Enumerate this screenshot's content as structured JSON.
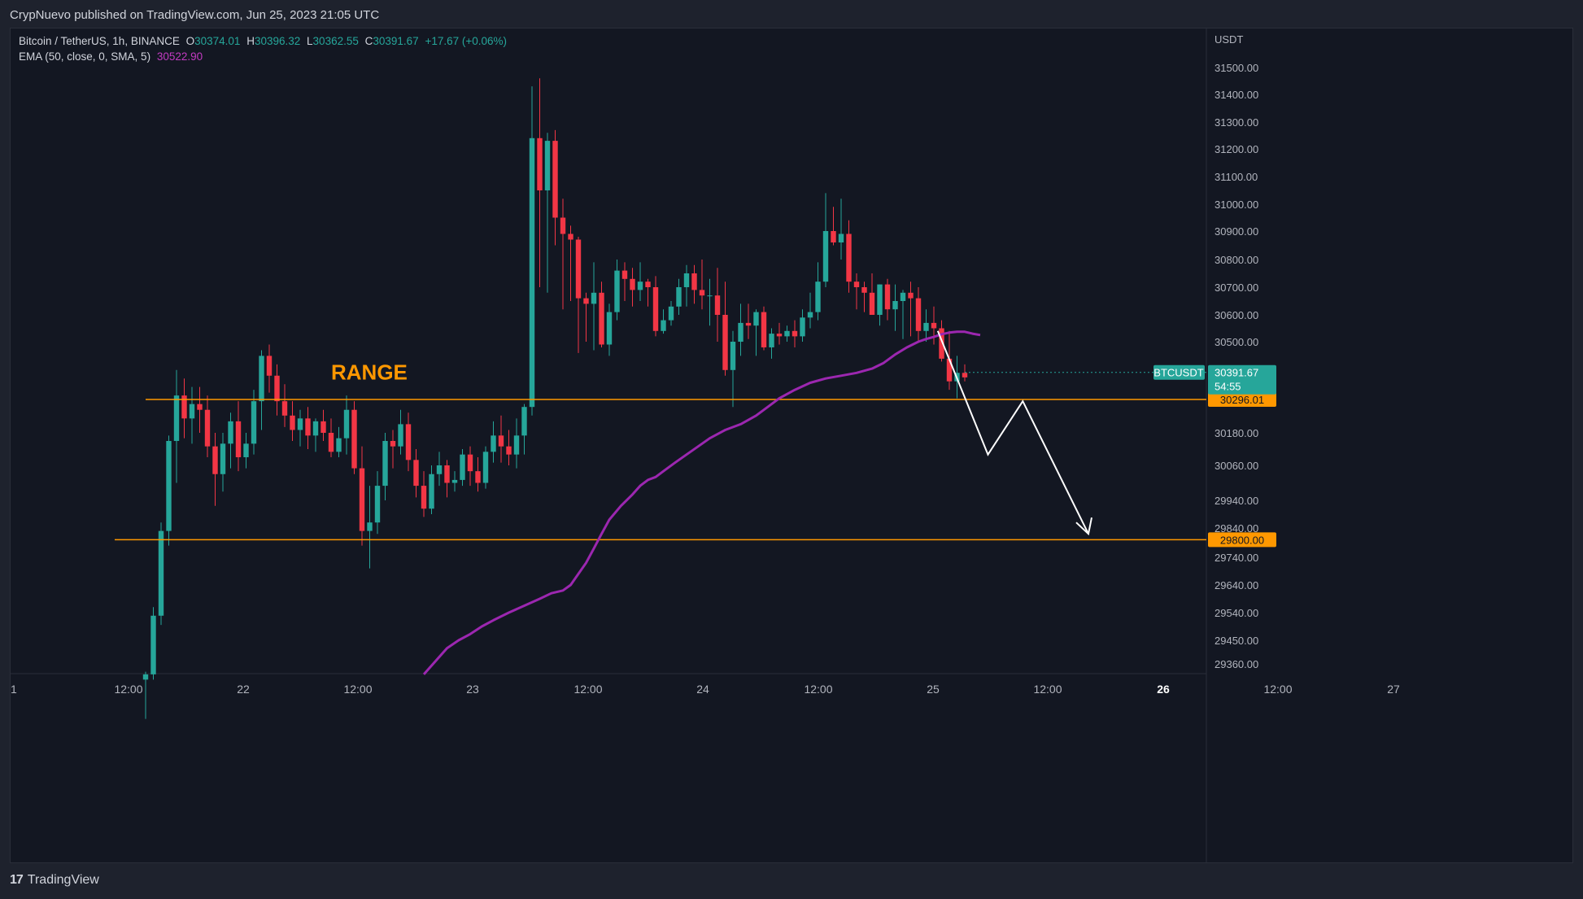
{
  "header": {
    "publisher": "CrypNuevo published on TradingView.com, Jun 25, 2023 21:05 UTC"
  },
  "footer": {
    "brand": "TradingView",
    "logo_icon": "tradingview-logo-icon"
  },
  "colors": {
    "up": "#26a69a",
    "down": "#f23645",
    "ema": "#9c27b0",
    "level": "#ff9800",
    "bg": "#131722",
    "axis_text": "#b2b5be"
  },
  "legend": {
    "symbol": "Bitcoin / TetherUS, 1h, BINANCE",
    "o_label": "O",
    "o_value": "30374.01",
    "h_label": "H",
    "h_value": "30396.32",
    "l_label": "L",
    "l_value": "30362.55",
    "c_label": "C",
    "c_value": "30391.67",
    "change": "+17.67 (+0.06%)",
    "ema_label": "EMA (50, close, 0, SMA, 5)",
    "ema_value": "30522.90"
  },
  "chart_data": {
    "type": "candlestick",
    "currency_label": "USDT",
    "y_ticks": [
      "31500.00",
      "31400.00",
      "31300.00",
      "31200.00",
      "31100.00",
      "31000.00",
      "30900.00",
      "30800.00",
      "30700.00",
      "30600.00",
      "30500.00",
      "30180.00",
      "30060.00",
      "29940.00",
      "29840.00",
      "29740.00",
      "29640.00",
      "29540.00",
      "29450.00",
      "29360.00"
    ],
    "x_ticks": [
      "1",
      "12:00",
      "22",
      "12:00",
      "23",
      "12:00",
      "24",
      "12:00",
      "25",
      "12:00",
      "26",
      "12:00",
      "27"
    ],
    "price_tag": {
      "symbol": "BTCUSDT",
      "price": "30391.67",
      "countdown": "54:55"
    },
    "levels": [
      {
        "price": 30296.01,
        "label": "30296.01",
        "start_hour": 0
      },
      {
        "price": 29800.0,
        "label": "29800.00",
        "start_hour": -4
      }
    ],
    "annotation": {
      "text": "RANGE",
      "hour": 24,
      "price": 30395
    },
    "projection": [
      [
        102.5,
        30540
      ],
      [
        109,
        30100
      ],
      [
        113.5,
        30290
      ],
      [
        122,
        29820
      ]
    ],
    "ohlc": [
      [
        29300,
        29330,
        29150,
        29320
      ],
      [
        29320,
        29560,
        29300,
        29530
      ],
      [
        29530,
        29860,
        29500,
        29830
      ],
      [
        29830,
        30170,
        29780,
        30150
      ],
      [
        30150,
        30400,
        30000,
        30310
      ],
      [
        30310,
        30370,
        30160,
        30230
      ],
      [
        30230,
        30340,
        30140,
        30280
      ],
      [
        30280,
        30340,
        30180,
        30260
      ],
      [
        30260,
        30310,
        30090,
        30130
      ],
      [
        30130,
        30180,
        29920,
        30030
      ],
      [
        30030,
        30180,
        29970,
        30140
      ],
      [
        30140,
        30250,
        30050,
        30220
      ],
      [
        30220,
        30290,
        30040,
        30090
      ],
      [
        30090,
        30180,
        30050,
        30140
      ],
      [
        30140,
        30330,
        30100,
        30290
      ],
      [
        30290,
        30470,
        30190,
        30450
      ],
      [
        30450,
        30490,
        30320,
        30380
      ],
      [
        30380,
        30420,
        30240,
        30290
      ],
      [
        30290,
        30350,
        30200,
        30240
      ],
      [
        30240,
        30290,
        30150,
        30190
      ],
      [
        30190,
        30260,
        30130,
        30230
      ],
      [
        30230,
        30270,
        30120,
        30170
      ],
      [
        30170,
        30230,
        30110,
        30220
      ],
      [
        30220,
        30260,
        30150,
        30180
      ],
      [
        30180,
        30230,
        30090,
        30110
      ],
      [
        30110,
        30200,
        30090,
        30160
      ],
      [
        30160,
        30310,
        30100,
        30260
      ],
      [
        30260,
        30290,
        30030,
        30050
      ],
      [
        30050,
        30130,
        29780,
        29830
      ],
      [
        29830,
        29990,
        29700,
        29860
      ],
      [
        29860,
        30040,
        29820,
        29990
      ],
      [
        29990,
        30180,
        29940,
        30150
      ],
      [
        30150,
        30190,
        30050,
        30130
      ],
      [
        30130,
        30260,
        30100,
        30210
      ],
      [
        30210,
        30250,
        30040,
        30080
      ],
      [
        30080,
        30120,
        29950,
        29990
      ],
      [
        29990,
        30040,
        29880,
        29910
      ],
      [
        29910,
        30060,
        29890,
        30030
      ],
      [
        30030,
        30110,
        29990,
        30060
      ],
      [
        30060,
        30080,
        29950,
        30000
      ],
      [
        30000,
        30040,
        29970,
        30010
      ],
      [
        30010,
        30120,
        29990,
        30100
      ],
      [
        30100,
        30130,
        29990,
        30040
      ],
      [
        30040,
        30090,
        29970,
        30000
      ],
      [
        30000,
        30130,
        29980,
        30110
      ],
      [
        30110,
        30220,
        30070,
        30170
      ],
      [
        30170,
        30240,
        30070,
        30130
      ],
      [
        30130,
        30190,
        30060,
        30100
      ],
      [
        30100,
        30230,
        30050,
        30170
      ],
      [
        30170,
        30280,
        30100,
        30270
      ],
      [
        30270,
        31430,
        30240,
        31240
      ],
      [
        31240,
        31460,
        30700,
        31050
      ],
      [
        31050,
        31260,
        30680,
        31230
      ],
      [
        31230,
        31270,
        30850,
        30950
      ],
      [
        30950,
        31020,
        30620,
        30890
      ],
      [
        30890,
        30920,
        30650,
        30870
      ],
      [
        30870,
        30880,
        30460,
        30660
      ],
      [
        30660,
        30680,
        30500,
        30640
      ],
      [
        30640,
        30790,
        30470,
        30680
      ],
      [
        30680,
        30720,
        30480,
        30490
      ],
      [
        30490,
        30640,
        30450,
        30610
      ],
      [
        30610,
        30800,
        30580,
        30760
      ],
      [
        30760,
        30790,
        30650,
        30730
      ],
      [
        30730,
        30770,
        30630,
        30690
      ],
      [
        30690,
        30790,
        30650,
        30720
      ],
      [
        30720,
        30730,
        30630,
        30700
      ],
      [
        30700,
        30740,
        30520,
        30540
      ],
      [
        30540,
        30620,
        30530,
        30580
      ],
      [
        30580,
        30650,
        30560,
        30630
      ],
      [
        30630,
        30730,
        30600,
        30700
      ],
      [
        30700,
        30780,
        30630,
        30750
      ],
      [
        30750,
        30780,
        30640,
        30690
      ],
      [
        30690,
        30800,
        30620,
        30670
      ],
      [
        30670,
        30730,
        30560,
        30670
      ],
      [
        30670,
        30770,
        30500,
        30600
      ],
      [
        30600,
        30720,
        30380,
        30400
      ],
      [
        30400,
        30540,
        30270,
        30500
      ],
      [
        30500,
        30640,
        30450,
        30570
      ],
      [
        30570,
        30640,
        30510,
        30560
      ],
      [
        30560,
        30620,
        30450,
        30610
      ],
      [
        30610,
        30630,
        30470,
        30480
      ],
      [
        30480,
        30550,
        30440,
        30530
      ],
      [
        30530,
        30570,
        30490,
        30520
      ],
      [
        30520,
        30560,
        30500,
        30540
      ],
      [
        30540,
        30580,
        30480,
        30520
      ],
      [
        30520,
        30620,
        30500,
        30590
      ],
      [
        30590,
        30680,
        30550,
        30610
      ],
      [
        30610,
        30790,
        30580,
        30720
      ],
      [
        30720,
        31040,
        30700,
        30900
      ],
      [
        30900,
        30990,
        30850,
        30860
      ],
      [
        30860,
        31020,
        30800,
        30890
      ],
      [
        30890,
        30940,
        30680,
        30720
      ],
      [
        30720,
        30750,
        30620,
        30700
      ],
      [
        30700,
        30720,
        30610,
        30680
      ],
      [
        30680,
        30750,
        30620,
        30600
      ],
      [
        30600,
        30710,
        30560,
        30710
      ],
      [
        30710,
        30730,
        30580,
        30620
      ],
      [
        30620,
        30710,
        30540,
        30650
      ],
      [
        30650,
        30690,
        30510,
        30680
      ],
      [
        30680,
        30720,
        30520,
        30660
      ],
      [
        30660,
        30700,
        30500,
        30540
      ],
      [
        30540,
        30620,
        30500,
        30570
      ],
      [
        30570,
        30630,
        30490,
        30550
      ],
      [
        30550,
        30580,
        30430,
        30440
      ],
      [
        30440,
        30540,
        30330,
        30360
      ],
      [
        30360,
        30450,
        30300,
        30390
      ],
      [
        30390,
        30420,
        30360,
        30374
      ]
    ],
    "ema": [
      [
        36,
        29320
      ],
      [
        37.5,
        29370
      ],
      [
        39,
        29420
      ],
      [
        40.5,
        29450
      ],
      [
        42,
        29470
      ],
      [
        43.5,
        29495
      ],
      [
        45,
        29515
      ],
      [
        47,
        29540
      ],
      [
        49,
        29565
      ],
      [
        51,
        29590
      ],
      [
        52.5,
        29610
      ],
      [
        54,
        29620
      ],
      [
        55,
        29640
      ],
      [
        56,
        29680
      ],
      [
        57,
        29720
      ],
      [
        58,
        29770
      ],
      [
        59,
        29820
      ],
      [
        60,
        29870
      ],
      [
        61.5,
        29920
      ],
      [
        63,
        29960
      ],
      [
        64,
        29990
      ],
      [
        65,
        30010
      ],
      [
        66,
        30020
      ],
      [
        67,
        30040
      ],
      [
        68.5,
        30070
      ],
      [
        70,
        30100
      ],
      [
        71.5,
        30130
      ],
      [
        73,
        30160
      ],
      [
        75,
        30190
      ],
      [
        77,
        30210
      ],
      [
        79,
        30240
      ],
      [
        80.5,
        30270
      ],
      [
        82,
        30300
      ],
      [
        84,
        30330
      ],
      [
        86,
        30355
      ],
      [
        88,
        30370
      ],
      [
        90,
        30380
      ],
      [
        92,
        30390
      ],
      [
        94,
        30405
      ],
      [
        95.5,
        30425
      ],
      [
        97,
        30455
      ],
      [
        98.5,
        30480
      ],
      [
        100,
        30500
      ],
      [
        101,
        30510
      ],
      [
        102,
        30518
      ],
      [
        103,
        30528
      ],
      [
        104,
        30534
      ],
      [
        105,
        30537
      ],
      [
        106,
        30537
      ],
      [
        107,
        30530
      ],
      [
        108,
        30525
      ]
    ]
  }
}
